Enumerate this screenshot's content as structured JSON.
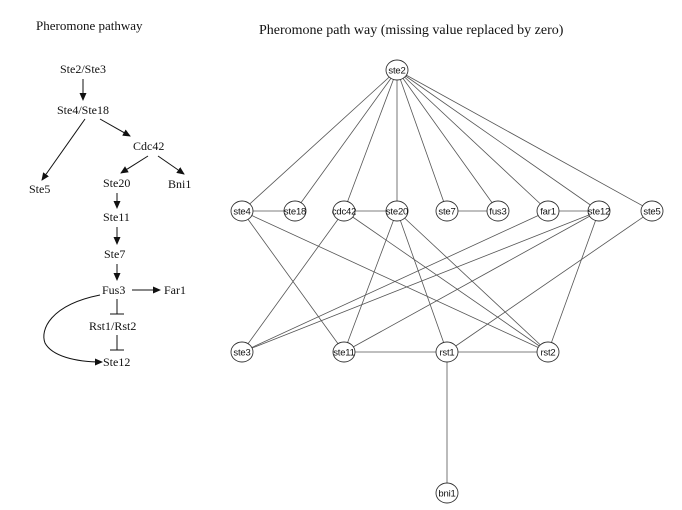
{
  "left_panel": {
    "title": "Pheromone pathway",
    "labels": {
      "ste2_ste3": "Ste2/Ste3",
      "ste4_ste18": "Ste4/Ste18",
      "cdc42": "Cdc42",
      "ste5": "Ste5",
      "ste20": "Ste20",
      "bni1": "Bni1",
      "ste11": "Ste11",
      "ste7": "Ste7",
      "fus3": "Fus3",
      "far1": "Far1",
      "rst1_rst2": "Rst1/Rst2",
      "ste12": "Ste12"
    }
  },
  "right_panel": {
    "title": "Pheromone path way (missing value replaced by zero)",
    "nodes": {
      "ste2": "ste2",
      "ste4": "ste4",
      "ste18": "ste18",
      "cdc42": "cdc42",
      "ste20": "ste20",
      "ste7": "ste7",
      "fus3": "fus3",
      "far1": "far1",
      "ste12": "ste12",
      "ste5": "ste5",
      "ste3": "ste3",
      "ste11": "ste11",
      "rst1": "rst1",
      "rst2": "rst2",
      "bni1": "bni1"
    },
    "edges": [
      [
        "ste2",
        "ste4"
      ],
      [
        "ste2",
        "ste18"
      ],
      [
        "ste2",
        "cdc42"
      ],
      [
        "ste2",
        "ste20"
      ],
      [
        "ste2",
        "ste7"
      ],
      [
        "ste2",
        "fus3"
      ],
      [
        "ste2",
        "far1"
      ],
      [
        "ste2",
        "ste12"
      ],
      [
        "ste2",
        "ste5"
      ],
      [
        "ste4",
        "ste18"
      ],
      [
        "cdc42",
        "ste20"
      ],
      [
        "ste7",
        "fus3"
      ],
      [
        "far1",
        "ste12"
      ],
      [
        "ste4",
        "ste11"
      ],
      [
        "ste4",
        "rst2"
      ],
      [
        "cdc42",
        "ste3"
      ],
      [
        "cdc42",
        "rst2"
      ],
      [
        "ste20",
        "ste11"
      ],
      [
        "ste20",
        "rst1"
      ],
      [
        "ste20",
        "rst2"
      ],
      [
        "far1",
        "ste3"
      ],
      [
        "ste12",
        "ste3"
      ],
      [
        "ste12",
        "ste11"
      ],
      [
        "ste12",
        "rst2"
      ],
      [
        "ste5",
        "rst1"
      ],
      [
        "ste11",
        "rst1"
      ],
      [
        "rst1",
        "rst2"
      ],
      [
        "rst1",
        "bni1"
      ]
    ]
  }
}
